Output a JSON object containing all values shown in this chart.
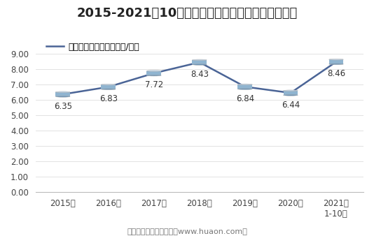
{
  "title": "2015-2021年10月郑州商品交易所棉花期货成交均价",
  "legend_label": "棉花期货成交均价（万元/手）",
  "xlabel_notes": [
    "2015年",
    "2016年",
    "2017年",
    "2018年",
    "2019年",
    "2020年",
    "2021年\n1-10月"
  ],
  "x_values": [
    0,
    1,
    2,
    3,
    4,
    5,
    6
  ],
  "y_values": [
    6.35,
    6.83,
    7.72,
    8.43,
    6.84,
    6.44,
    8.46
  ],
  "data_labels": [
    "6.35",
    "6.83",
    "7.72",
    "8.43",
    "6.84",
    "6.44",
    "8.46"
  ],
  "label_offsets": [
    -0.48,
    -0.48,
    -0.48,
    -0.48,
    -0.48,
    -0.48,
    -0.48
  ],
  "ylim": [
    0,
    9.8
  ],
  "yticks": [
    0.0,
    1.0,
    2.0,
    3.0,
    4.0,
    5.0,
    6.0,
    7.0,
    8.0,
    9.0
  ],
  "line_color": "#4a6496",
  "footer": "制图：华经产业研究院（www.huaon.com）",
  "bg_color": "#ffffff",
  "plot_bg_color": "#ffffff",
  "title_fontsize": 13,
  "label_fontsize": 8.5,
  "tick_fontsize": 8.5,
  "legend_fontsize": 9,
  "footer_fontsize": 8,
  "cyl_top_color": "#c5d8ea",
  "cyl_mid_color": "#8fb4d0",
  "cyl_bot_color": "#6a94b8"
}
